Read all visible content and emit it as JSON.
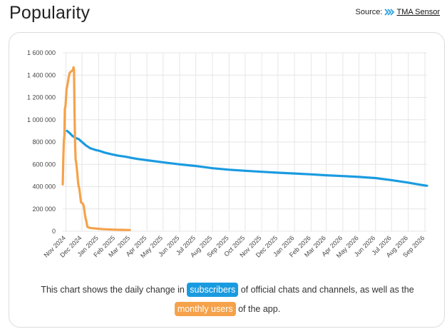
{
  "header": {
    "title": "Popularity",
    "source_label": "Source:",
    "source_link": "TMA Sensor"
  },
  "caption": {
    "before": "This chart shows the daily change in",
    "subscribers_badge": "subscribers",
    "middle": "of official chats and channels, as well as the",
    "monthly_badge": "monthly users",
    "after": "of the app."
  },
  "colors": {
    "subscribers": "#1a9be0",
    "monthly_users": "#f5a24b",
    "grid": "#e6e6e6"
  },
  "chart_data": {
    "type": "line",
    "ylim": [
      0,
      1600000
    ],
    "yticks": [
      0,
      200000,
      400000,
      600000,
      800000,
      1000000,
      1200000,
      1400000,
      1600000
    ],
    "ytick_labels": [
      "0",
      "200 000",
      "400 000",
      "600 000",
      "800 000",
      "1 000 000",
      "1 200 000",
      "1 400 000",
      "1 600 000"
    ],
    "xticks": [
      "2024-11-01",
      "2024-12-01",
      "2025-01-01",
      "2025-02-01",
      "2025-03-01",
      "2025-04-01",
      "2025-05-01",
      "2025-06-01",
      "2025-07-01",
      "2025-08-01",
      "2025-09-01",
      "2025-10-01",
      "2025-11-01",
      "2025-12-01",
      "2026-01-01",
      "2026-02-01",
      "2026-03-01",
      "2026-04-01",
      "2026-05-01",
      "2026-06-01",
      "2026-07-01",
      "2026-08-01",
      "2026-09-01"
    ],
    "xtick_labels": [
      "Nov 2024",
      "Dec 2024",
      "Jan 2025",
      "Feb 2025",
      "Mar 2025",
      "Apr 2025",
      "May 2025",
      "Jun 2025",
      "Jul 2025",
      "Aug 2025",
      "Sep 2025",
      "Oct 2025",
      "Nov 2025",
      "Dec 2025",
      "Jan 2026",
      "Feb 2026",
      "Mar 2026",
      "Apr 2026",
      "May 2026",
      "Jun 2026",
      "Jul 2026",
      "Aug 2026",
      "Sep 2026"
    ],
    "xlim": [
      "2024-10-26",
      "2026-09-05"
    ],
    "grid": true,
    "series": [
      {
        "name": "subscribers",
        "color": "#1a9be0",
        "points": [
          [
            "2024-11-03",
            900000
          ],
          [
            "2024-11-08",
            880000
          ],
          [
            "2024-11-13",
            855000
          ],
          [
            "2024-11-18",
            840000
          ],
          [
            "2024-11-25",
            825000
          ],
          [
            "2024-12-01",
            800000
          ],
          [
            "2024-12-08",
            770000
          ],
          [
            "2024-12-16",
            745000
          ],
          [
            "2024-12-25",
            730000
          ],
          [
            "2025-01-03",
            720000
          ],
          [
            "2025-01-12",
            705000
          ],
          [
            "2025-01-25",
            690000
          ],
          [
            "2025-02-06",
            678000
          ],
          [
            "2025-02-20",
            668000
          ],
          [
            "2025-03-01",
            660000
          ],
          [
            "2025-03-15",
            648000
          ],
          [
            "2025-04-01",
            637000
          ],
          [
            "2025-05-01",
            618000
          ],
          [
            "2025-06-01",
            600000
          ],
          [
            "2025-07-01",
            585000
          ],
          [
            "2025-08-01",
            565000
          ],
          [
            "2025-09-01",
            552000
          ],
          [
            "2025-10-01",
            542000
          ],
          [
            "2025-11-01",
            533000
          ],
          [
            "2025-12-01",
            525000
          ],
          [
            "2026-01-01",
            518000
          ],
          [
            "2026-02-01",
            510000
          ],
          [
            "2026-03-01",
            502000
          ],
          [
            "2026-04-01",
            495000
          ],
          [
            "2026-05-01",
            487000
          ],
          [
            "2026-06-01",
            477000
          ],
          [
            "2026-07-01",
            458000
          ],
          [
            "2026-08-01",
            436000
          ],
          [
            "2026-08-20",
            420000
          ],
          [
            "2026-09-05",
            408000
          ]
        ]
      },
      {
        "name": "monthly users",
        "color": "#f5a24b",
        "points": [
          [
            "2024-10-26",
            420000
          ],
          [
            "2024-10-27",
            650000
          ],
          [
            "2024-10-28",
            800000
          ],
          [
            "2024-10-29",
            860000
          ],
          [
            "2024-10-30",
            1100000
          ],
          [
            "2024-10-31",
            1120000
          ],
          [
            "2024-11-01",
            1180000
          ],
          [
            "2024-11-02",
            1270000
          ],
          [
            "2024-11-04",
            1320000
          ],
          [
            "2024-11-06",
            1380000
          ],
          [
            "2024-11-08",
            1420000
          ],
          [
            "2024-11-11",
            1435000
          ],
          [
            "2024-11-14",
            1445000
          ],
          [
            "2024-11-15",
            1470000
          ],
          [
            "2024-11-16",
            1450000
          ],
          [
            "2024-11-17",
            1050000
          ],
          [
            "2024-11-18",
            800000
          ],
          [
            "2024-11-19",
            640000
          ],
          [
            "2024-11-20",
            620000
          ],
          [
            "2024-11-22",
            530000
          ],
          [
            "2024-11-24",
            420000
          ],
          [
            "2024-11-26",
            380000
          ],
          [
            "2024-11-29",
            260000
          ],
          [
            "2024-12-02",
            250000
          ],
          [
            "2024-12-04",
            230000
          ],
          [
            "2024-12-07",
            130000
          ],
          [
            "2024-12-09",
            90000
          ],
          [
            "2024-12-11",
            40000
          ],
          [
            "2024-12-15",
            30000
          ],
          [
            "2024-12-25",
            25000
          ],
          [
            "2025-01-10",
            18000
          ],
          [
            "2025-01-30",
            14000
          ],
          [
            "2025-02-15",
            12000
          ],
          [
            "2025-02-28",
            11000
          ]
        ]
      }
    ]
  }
}
